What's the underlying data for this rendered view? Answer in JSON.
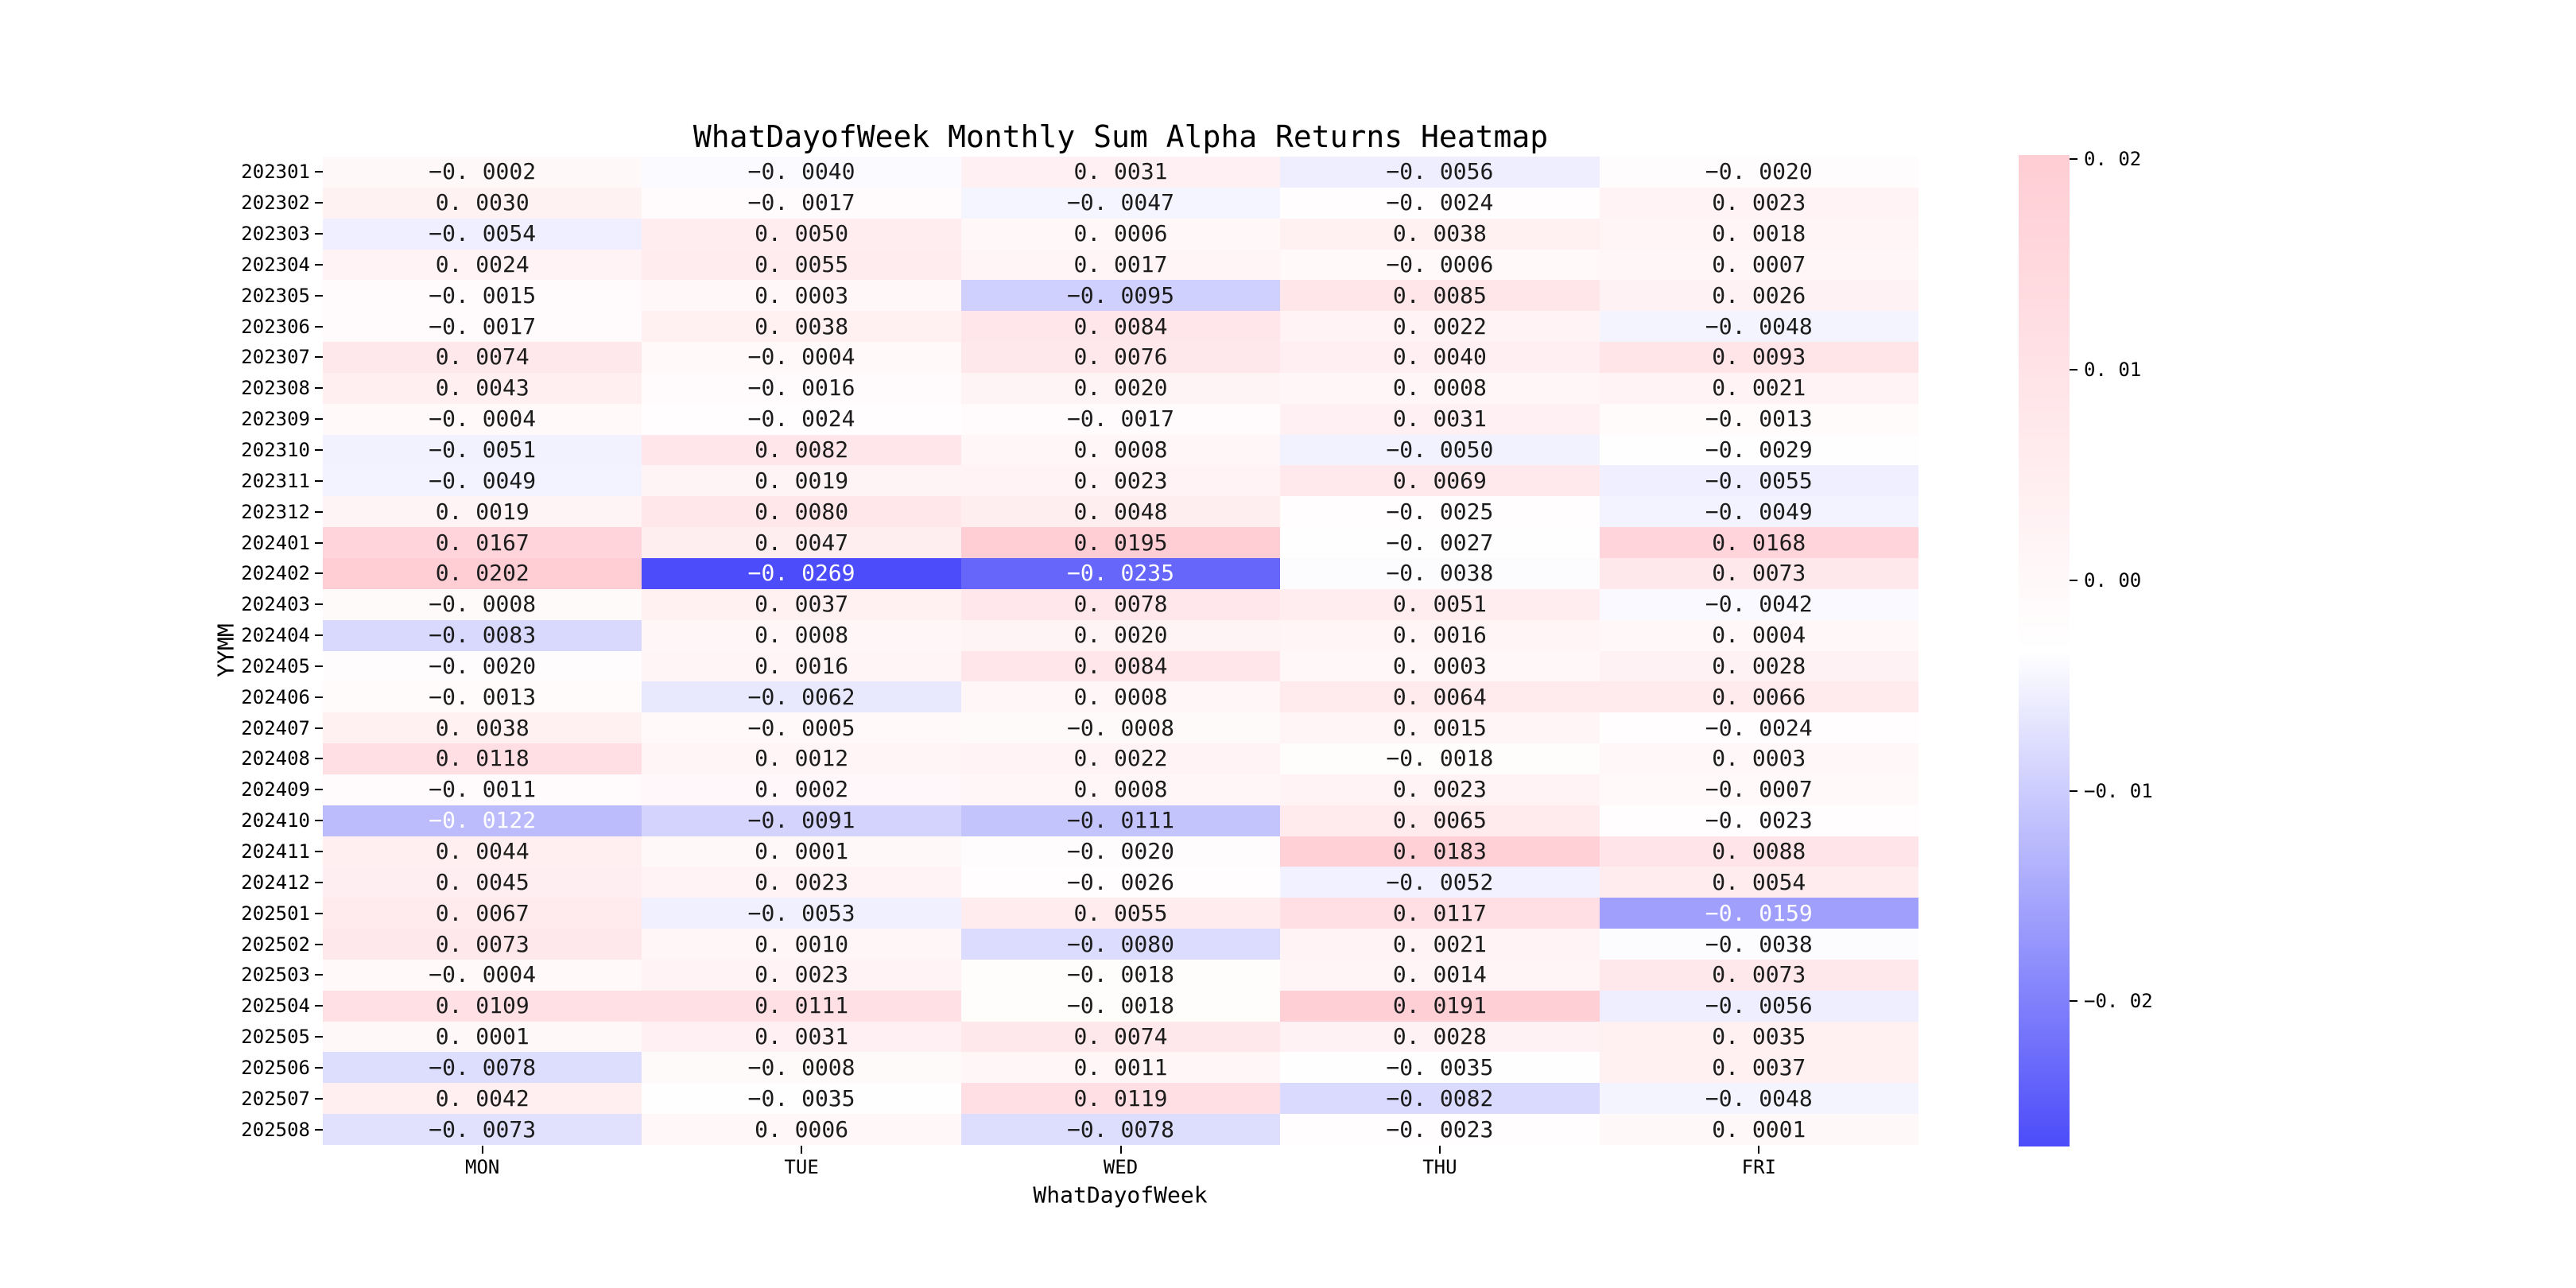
{
  "title": "WhatDayofWeek Monthly Sum Alpha Returns Heatmap",
  "chart_data": {
    "type": "heatmap",
    "title": "WhatDayofWeek Monthly Sum Alpha Returns Heatmap",
    "xlabel": "WhatDayofWeek",
    "ylabel": "YYMM",
    "columns": [
      "MON",
      "TUE",
      "WED",
      "THU",
      "FRI"
    ],
    "rows": [
      "202301",
      "202302",
      "202303",
      "202304",
      "202305",
      "202306",
      "202307",
      "202308",
      "202309",
      "202310",
      "202311",
      "202312",
      "202401",
      "202402",
      "202403",
      "202404",
      "202405",
      "202406",
      "202407",
      "202408",
      "202409",
      "202410",
      "202411",
      "202412",
      "202501",
      "202502",
      "202503",
      "202504",
      "202505",
      "202506",
      "202507",
      "202508"
    ],
    "values": [
      [
        -0.0002,
        -0.004,
        0.0031,
        -0.0056,
        -0.002
      ],
      [
        0.003,
        -0.0017,
        -0.0047,
        -0.0024,
        0.0023
      ],
      [
        -0.0054,
        0.005,
        0.0006,
        0.0038,
        0.0018
      ],
      [
        0.0024,
        0.0055,
        0.0017,
        -0.0006,
        0.0007
      ],
      [
        -0.0015,
        0.0003,
        -0.0095,
        0.0085,
        0.0026
      ],
      [
        -0.0017,
        0.0038,
        0.0084,
        0.0022,
        -0.0048
      ],
      [
        0.0074,
        -0.0004,
        0.0076,
        0.004,
        0.0093
      ],
      [
        0.0043,
        -0.0016,
        0.002,
        0.0008,
        0.0021
      ],
      [
        -0.0004,
        -0.0024,
        -0.0017,
        0.0031,
        -0.0013
      ],
      [
        -0.0051,
        0.0082,
        0.0008,
        -0.005,
        -0.0029
      ],
      [
        -0.0049,
        0.0019,
        0.0023,
        0.0069,
        -0.0055
      ],
      [
        0.0019,
        0.008,
        0.0048,
        -0.0025,
        -0.0049
      ],
      [
        0.0167,
        0.0047,
        0.0195,
        -0.0027,
        0.0168
      ],
      [
        0.0202,
        -0.0269,
        -0.0235,
        -0.0038,
        0.0073
      ],
      [
        -0.0008,
        0.0037,
        0.0078,
        0.0051,
        -0.0042
      ],
      [
        -0.0083,
        0.0008,
        0.002,
        0.0016,
        0.0004
      ],
      [
        -0.002,
        0.0016,
        0.0084,
        0.0003,
        0.0028
      ],
      [
        -0.0013,
        -0.0062,
        0.0008,
        0.0064,
        0.0066
      ],
      [
        0.0038,
        -0.0005,
        -0.0008,
        0.0015,
        -0.0024
      ],
      [
        0.0118,
        0.0012,
        0.0022,
        -0.0018,
        0.0003
      ],
      [
        -0.0011,
        0.0002,
        0.0008,
        0.0023,
        -0.0007
      ],
      [
        -0.0122,
        -0.0091,
        -0.0111,
        0.0065,
        -0.0023
      ],
      [
        0.0044,
        0.0001,
        -0.002,
        0.0183,
        0.0088
      ],
      [
        0.0045,
        0.0023,
        -0.0026,
        -0.0052,
        0.0054
      ],
      [
        0.0067,
        -0.0053,
        0.0055,
        0.0117,
        -0.0159
      ],
      [
        0.0073,
        0.001,
        -0.008,
        0.0021,
        -0.0038
      ],
      [
        -0.0004,
        0.0023,
        -0.0018,
        0.0014,
        0.0073
      ],
      [
        0.0109,
        0.0111,
        -0.0018,
        0.0191,
        -0.0056
      ],
      [
        0.0001,
        0.0031,
        0.0074,
        0.0028,
        0.0035
      ],
      [
        -0.0078,
        -0.0008,
        0.0011,
        -0.0035,
        0.0037
      ],
      [
        0.0042,
        -0.0035,
        0.0119,
        -0.0082,
        -0.0048
      ],
      [
        -0.0073,
        0.0006,
        -0.0078,
        -0.0023,
        0.0001
      ]
    ],
    "vmin": -0.0269,
    "vmax": 0.0202,
    "value_decimals": 4,
    "colorbar": {
      "position": "right",
      "ticks": [
        0.02,
        0.01,
        0.0,
        -0.01,
        -0.02
      ],
      "tick_labels": [
        "0. 02",
        "0. 01",
        "0. 00",
        "−0. 01",
        "−0. 02"
      ]
    },
    "colors": {
      "positive_end": "#ffcdd4",
      "midpoint": "#ffffff",
      "negative_end": "#4c4cfa",
      "annotation_dark": "#1c1c1c",
      "annotation_light": "#ffffff"
    },
    "grid": false,
    "legend_position": "none"
  }
}
